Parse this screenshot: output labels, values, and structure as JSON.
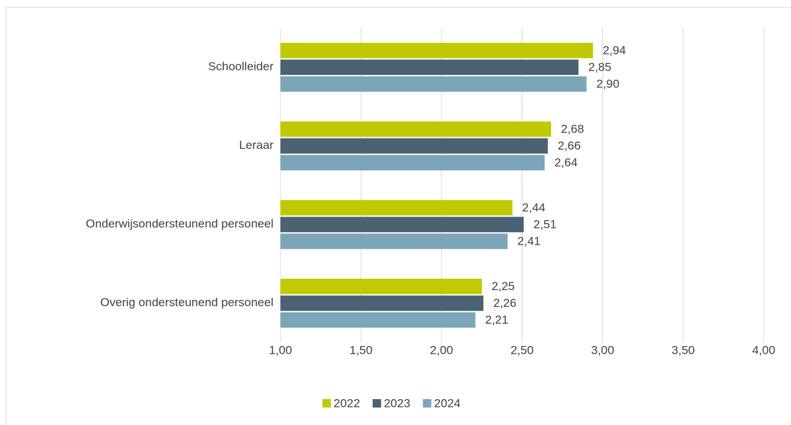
{
  "chart_data": {
    "type": "bar",
    "orientation": "horizontal",
    "categories": [
      "Schoolleider",
      "Leraar",
      "Onderwijsondersteunend personeel",
      "Overig ondersteunend personeel"
    ],
    "series": [
      {
        "name": "2022",
        "color": "#bfcb00",
        "values": [
          2.94,
          2.68,
          2.44,
          2.25
        ],
        "value_labels": [
          "2,94",
          "2,68",
          "2,44",
          "2,25"
        ]
      },
      {
        "name": "2023",
        "color": "#4a6271",
        "values": [
          2.85,
          2.66,
          2.51,
          2.26
        ],
        "value_labels": [
          "2,85",
          "2,66",
          "2,51",
          "2,26"
        ]
      },
      {
        "name": "2024",
        "color": "#7ba5b8",
        "values": [
          2.9,
          2.64,
          2.41,
          2.21
        ],
        "value_labels": [
          "2,90",
          "2,64",
          "2,41",
          "2,21"
        ]
      }
    ],
    "xlim": [
      1,
      4
    ],
    "xticks": [
      {
        "value": 1,
        "label": "1,00"
      },
      {
        "value": 1.5,
        "label": "1,50"
      },
      {
        "value": 2,
        "label": "2,00"
      },
      {
        "value": 2.5,
        "label": "2,50"
      },
      {
        "value": 3,
        "label": "3,00"
      },
      {
        "value": 3.5,
        "label": "3,50"
      },
      {
        "value": 4,
        "label": "4,00"
      }
    ],
    "grid": true,
    "legend": "bottom"
  }
}
